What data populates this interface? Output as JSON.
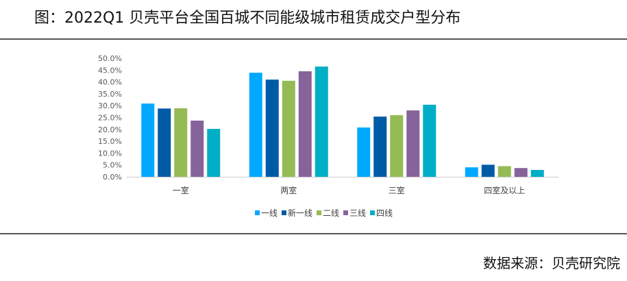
{
  "title": "图：2022Q1 贝壳平台全国百城不同能级城市租赁成交户型分布",
  "source": "数据来源：贝壳研究院",
  "chart_data": {
    "type": "bar",
    "title": "图：2022Q1 贝壳平台全国百城不同能级城市租赁成交户型分布",
    "categories": [
      "一室",
      "两室",
      "三室",
      "四室及以上"
    ],
    "series": [
      {
        "name": "一线",
        "color": "#00A9FF",
        "values": [
          30.9,
          43.9,
          20.8,
          4.0
        ]
      },
      {
        "name": "新一线",
        "color": "#005BA6",
        "values": [
          28.8,
          41.0,
          25.4,
          5.1
        ]
      },
      {
        "name": "二线",
        "color": "#95BB55",
        "values": [
          28.9,
          40.5,
          26.0,
          4.5
        ]
      },
      {
        "name": "三线",
        "color": "#86639A",
        "values": [
          23.7,
          44.5,
          28.0,
          3.7
        ]
      },
      {
        "name": "四线",
        "color": "#00AEC5",
        "values": [
          20.2,
          46.5,
          30.4,
          2.9
        ]
      }
    ],
    "ylim": [
      0,
      50
    ],
    "yticks": [
      "0.0%",
      "5.0%",
      "10.0%",
      "15.0%",
      "20.0%",
      "25.0%",
      "30.0%",
      "35.0%",
      "40.0%",
      "45.0%",
      "50.0%"
    ],
    "legend": "bottom",
    "grid": false
  }
}
